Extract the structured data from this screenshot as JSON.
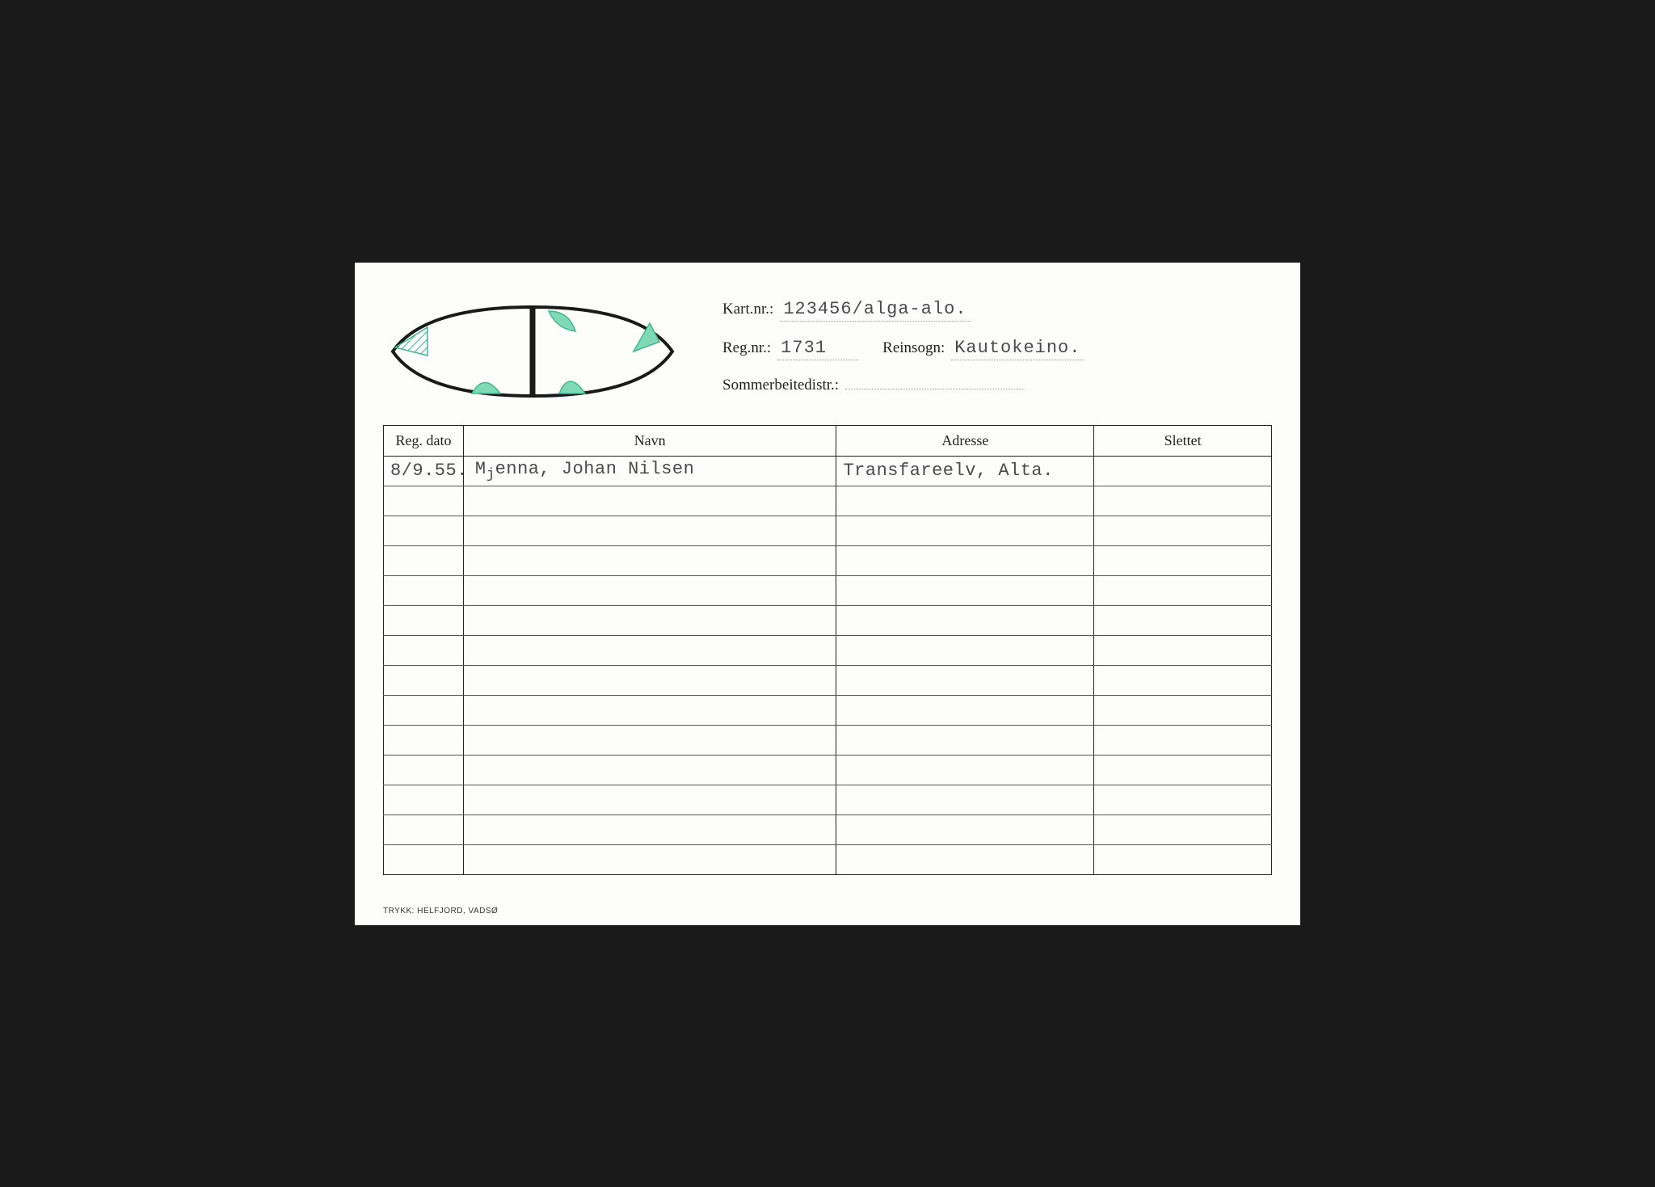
{
  "header": {
    "kartnr_label": "Kart.nr.:",
    "kartnr_value": "123456/alga-alo.",
    "regnr_label": "Reg.nr.:",
    "regnr_value": "1731",
    "reinsogn_label": "Reinsogn:",
    "reinsogn_value": "Kautokeino.",
    "sommer_label": "Sommerbeitedistr.:",
    "sommer_value": ""
  },
  "diagram": {
    "outline_stroke": "#1a1a1a",
    "outline_width": 4,
    "center_stroke": "#1a1a1a",
    "center_width": 7,
    "mark_fill": "#7fd9b5",
    "mark_stroke": "#3cb891",
    "hatch_stroke": "#3cb891"
  },
  "table": {
    "columns": {
      "date": "Reg. dato",
      "name": "Navn",
      "address": "Adresse",
      "deleted": "Slettet"
    },
    "rows": [
      {
        "date": "8/9.55.",
        "name_pre": "M",
        "name_sub": "j",
        "name_post": "enna, Johan Nilsen",
        "address": "Transfareelv, Alta.",
        "deleted": ""
      },
      {
        "date": "",
        "name_pre": "",
        "name_sub": "",
        "name_post": "",
        "address": "",
        "deleted": ""
      },
      {
        "date": "",
        "name_pre": "",
        "name_sub": "",
        "name_post": "",
        "address": "",
        "deleted": ""
      },
      {
        "date": "",
        "name_pre": "",
        "name_sub": "",
        "name_post": "",
        "address": "",
        "deleted": ""
      },
      {
        "date": "",
        "name_pre": "",
        "name_sub": "",
        "name_post": "",
        "address": "",
        "deleted": ""
      },
      {
        "date": "",
        "name_pre": "",
        "name_sub": "",
        "name_post": "",
        "address": "",
        "deleted": ""
      },
      {
        "date": "",
        "name_pre": "",
        "name_sub": "",
        "name_post": "",
        "address": "",
        "deleted": ""
      },
      {
        "date": "",
        "name_pre": "",
        "name_sub": "",
        "name_post": "",
        "address": "",
        "deleted": ""
      },
      {
        "date": "",
        "name_pre": "",
        "name_sub": "",
        "name_post": "",
        "address": "",
        "deleted": ""
      },
      {
        "date": "",
        "name_pre": "",
        "name_sub": "",
        "name_post": "",
        "address": "",
        "deleted": ""
      },
      {
        "date": "",
        "name_pre": "",
        "name_sub": "",
        "name_post": "",
        "address": "",
        "deleted": ""
      },
      {
        "date": "",
        "name_pre": "",
        "name_sub": "",
        "name_post": "",
        "address": "",
        "deleted": ""
      },
      {
        "date": "",
        "name_pre": "",
        "name_sub": "",
        "name_post": "",
        "address": "",
        "deleted": ""
      },
      {
        "date": "",
        "name_pre": "",
        "name_sub": "",
        "name_post": "",
        "address": "",
        "deleted": ""
      }
    ]
  },
  "footer": "TRYKK: HELFJORD, VADSØ"
}
